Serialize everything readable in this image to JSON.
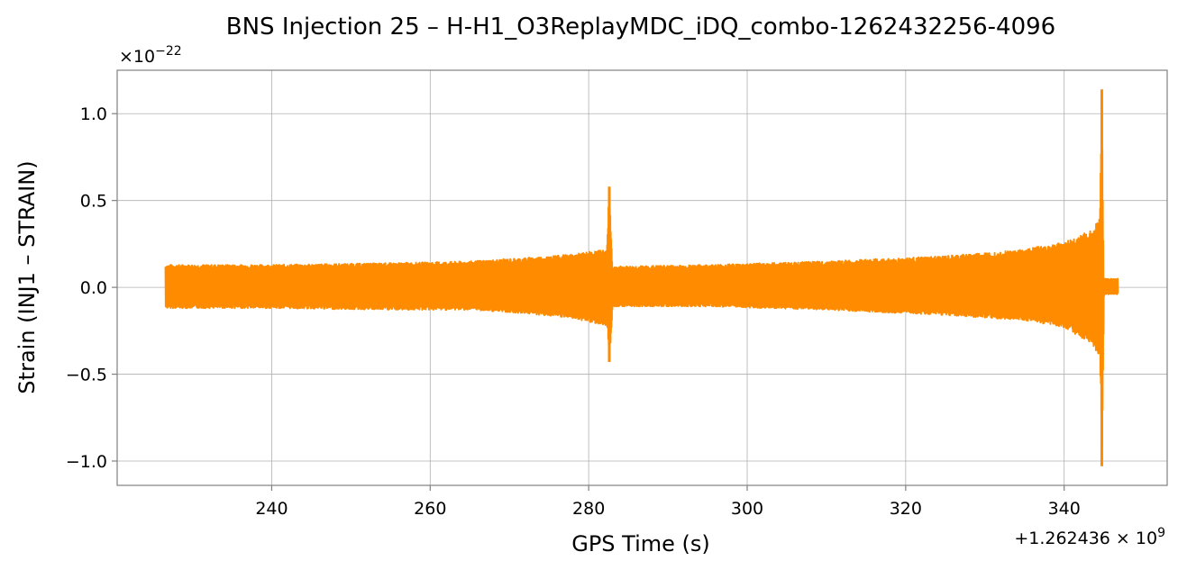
{
  "chart_data": {
    "type": "line",
    "title": "BNS Injection 25 – H-H1_O3ReplayMDC_iDQ_combo-1262432256-4096",
    "xlabel": "GPS Time (s)",
    "ylabel": "Strain (INJ1 – STRAIN)",
    "x_offset_label": "+1.262436 × 10^9",
    "y_scale_label": "×10^−22",
    "xlim": [
      220.5,
      353.0
    ],
    "ylim": [
      -1.14,
      1.25
    ],
    "xticks": [
      240,
      260,
      280,
      300,
      320,
      340
    ],
    "xtick_labels": [
      "240",
      "260",
      "280",
      "300",
      "320",
      "340"
    ],
    "yticks": [
      -1.0,
      -0.5,
      0.0,
      0.5,
      1.0
    ],
    "ytick_labels": [
      "−1.0",
      "−0.5",
      "0.0",
      "0.5",
      "1.0"
    ],
    "grid": true,
    "line_color": "#ff8c00",
    "series": [
      {
        "x_start": 226.6,
        "x_end": 346.8,
        "envelope": [
          {
            "x": 226.6,
            "upper": 0.13,
            "lower": -0.12
          },
          {
            "x": 240.0,
            "upper": 0.13,
            "lower": -0.12
          },
          {
            "x": 255.0,
            "upper": 0.14,
            "lower": -0.13
          },
          {
            "x": 265.0,
            "upper": 0.15,
            "lower": -0.13
          },
          {
            "x": 272.0,
            "upper": 0.17,
            "lower": -0.15
          },
          {
            "x": 278.0,
            "upper": 0.19,
            "lower": -0.18
          },
          {
            "x": 282.3,
            "upper": 0.22,
            "lower": -0.22
          },
          {
            "x": 282.6,
            "upper": 0.58,
            "lower": -0.43
          },
          {
            "x": 283.0,
            "upper": 0.12,
            "lower": -0.11
          },
          {
            "x": 295.0,
            "upper": 0.13,
            "lower": -0.11
          },
          {
            "x": 310.0,
            "upper": 0.15,
            "lower": -0.13
          },
          {
            "x": 325.0,
            "upper": 0.18,
            "lower": -0.16
          },
          {
            "x": 335.0,
            "upper": 0.22,
            "lower": -0.19
          },
          {
            "x": 340.0,
            "upper": 0.26,
            "lower": -0.23
          },
          {
            "x": 343.5,
            "upper": 0.33,
            "lower": -0.33
          },
          {
            "x": 344.5,
            "upper": 0.4,
            "lower": -0.42
          },
          {
            "x": 344.75,
            "upper": 1.14,
            "lower": -1.03
          },
          {
            "x": 345.0,
            "upper": 0.05,
            "lower": -0.04
          },
          {
            "x": 346.8,
            "upper": 0.05,
            "lower": -0.04
          }
        ]
      }
    ]
  }
}
